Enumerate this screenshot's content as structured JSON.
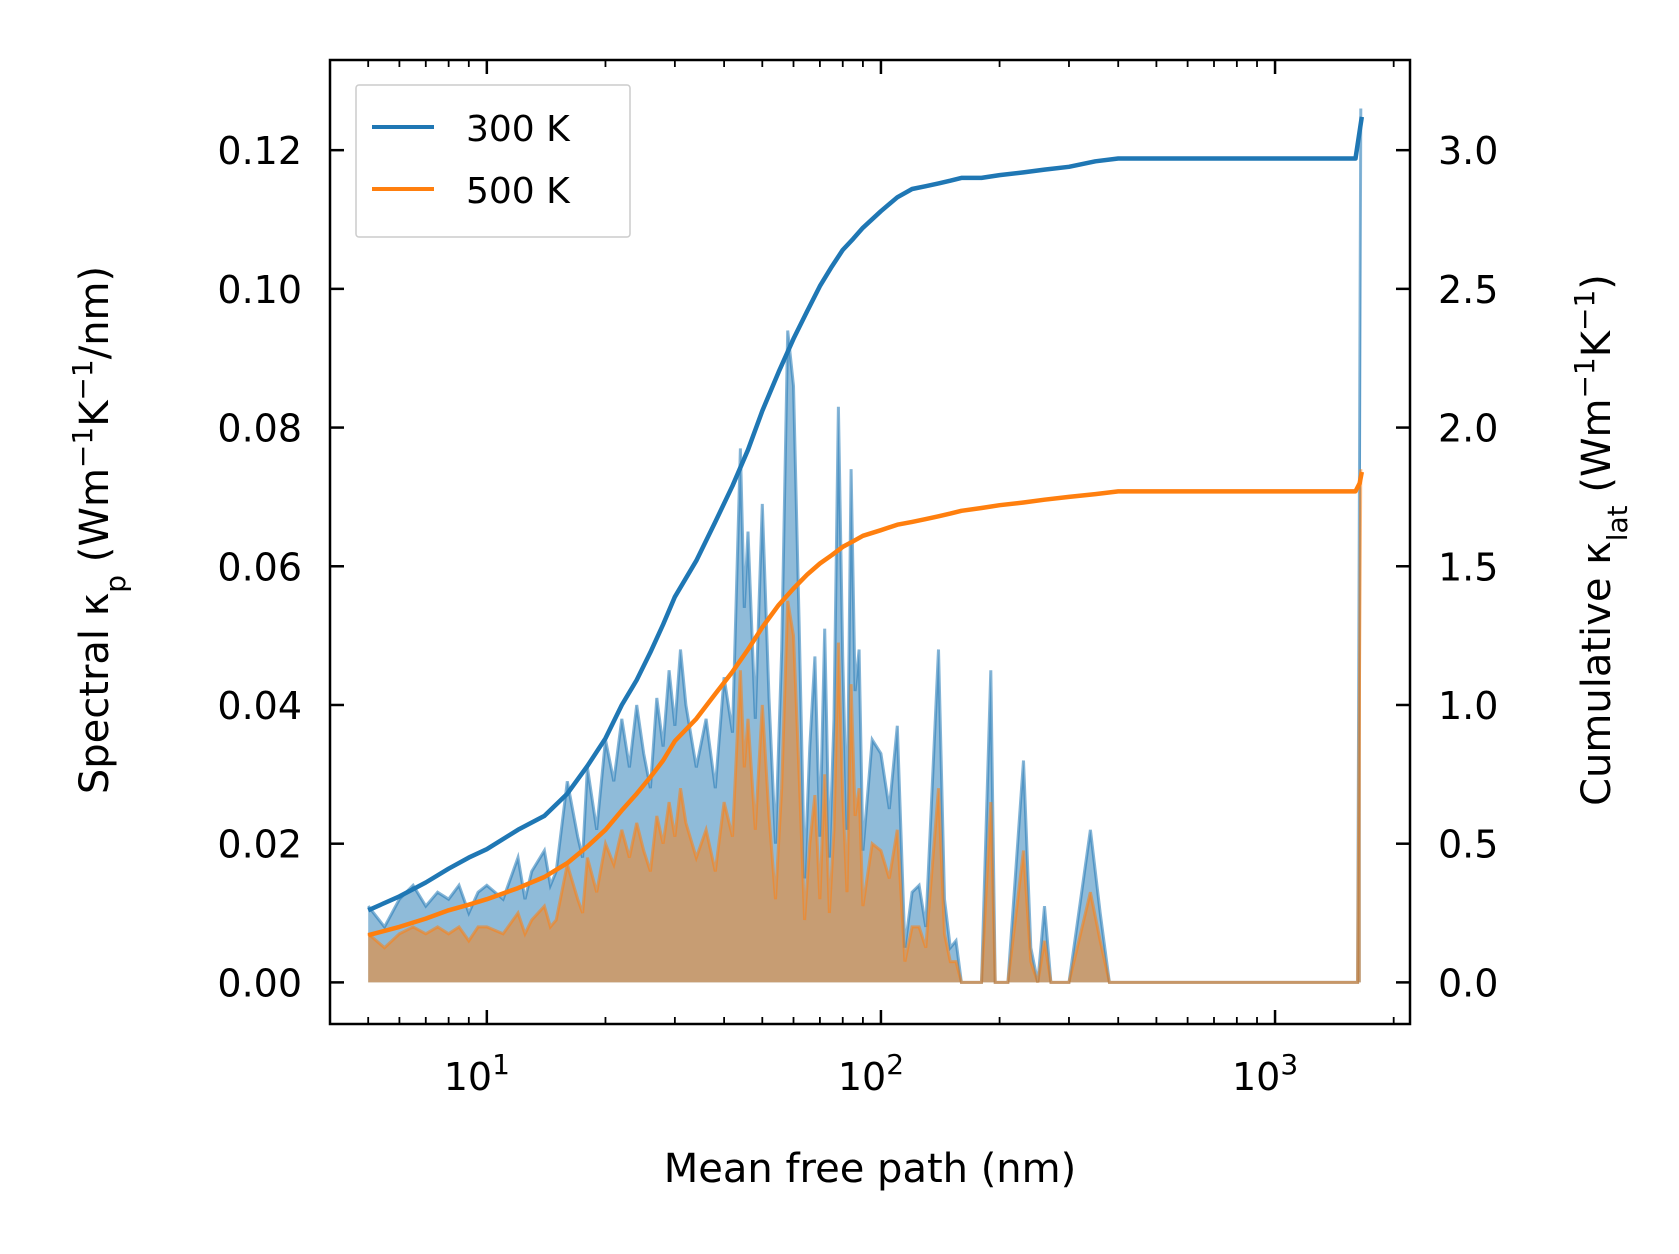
{
  "chart_data": {
    "type": "line",
    "xscale": "log",
    "xlabel": "Mean free path (nm)",
    "ylabel_left": {
      "prefix": "Spectral κ",
      "sub": "p",
      "units": " (Wm",
      "sup1": "−1",
      "mid": "K",
      "sup2": "−1",
      "tail": "/nm)"
    },
    "ylabel_right": {
      "prefix": "Cumulative κ",
      "sub": "lat",
      "units": " (Wm",
      "sup1": "−1",
      "mid": "K",
      "sup2": "−1",
      "tail": ")"
    },
    "xlim": [
      4.0,
      2200
    ],
    "ylim_left": [
      -0.006,
      0.133
    ],
    "ylim_right": [
      -0.15,
      3.325
    ],
    "xticks": [
      {
        "value": 10,
        "base": "10",
        "exp": "1"
      },
      {
        "value": 100,
        "base": "10",
        "exp": "2"
      },
      {
        "value": 1000,
        "base": "10",
        "exp": "3"
      }
    ],
    "yticks_left": [
      {
        "value": 0.0,
        "label": "0.00"
      },
      {
        "value": 0.02,
        "label": "0.02"
      },
      {
        "value": 0.04,
        "label": "0.04"
      },
      {
        "value": 0.06,
        "label": "0.06"
      },
      {
        "value": 0.08,
        "label": "0.08"
      },
      {
        "value": 0.1,
        "label": "0.10"
      },
      {
        "value": 0.12,
        "label": "0.12"
      }
    ],
    "yticks_right": [
      {
        "value": 0.0,
        "label": "0.0"
      },
      {
        "value": 0.5,
        "label": "0.5"
      },
      {
        "value": 1.0,
        "label": "1.0"
      },
      {
        "value": 1.5,
        "label": "1.5"
      },
      {
        "value": 2.0,
        "label": "2.0"
      },
      {
        "value": 2.5,
        "label": "2.5"
      },
      {
        "value": 3.0,
        "label": "3.0"
      }
    ],
    "legend": {
      "position": "top-left",
      "entries": [
        {
          "label": "300 K",
          "color": "#1f77b4"
        },
        {
          "label": "500 K",
          "color": "#ff7f0e"
        }
      ]
    },
    "series": [
      {
        "name": "300 K",
        "color": "#1f77b4",
        "spectral": {
          "x": [
            5.0,
            5.5,
            6.0,
            6.5,
            7.0,
            7.5,
            8.0,
            8.5,
            9.0,
            9.5,
            10.0,
            11.0,
            12.0,
            12.5,
            13.0,
            14.0,
            14.5,
            15.0,
            16.0,
            17.0,
            17.5,
            18.0,
            19.0,
            20.0,
            21.0,
            22.0,
            23.0,
            24.0,
            25.0,
            26.0,
            27.0,
            28.0,
            29.0,
            30.0,
            31.0,
            32.0,
            34.0,
            36.0,
            38.0,
            40.0,
            42.0,
            44.0,
            45.0,
            46.0,
            48.0,
            50.0,
            52.0,
            54.0,
            56.0,
            58.0,
            60.0,
            62.0,
            64.0,
            66.0,
            68.0,
            70.0,
            72.0,
            74.0,
            76.0,
            78.0,
            80.0,
            82.0,
            84.0,
            86.0,
            88.0,
            90.0,
            95.0,
            100.0,
            105.0,
            110.0,
            115.0,
            120.0,
            125.0,
            130.0,
            140.0,
            145.0,
            150.0,
            155.0,
            160.0,
            170.0,
            180.0,
            190.0,
            195.0,
            200.0,
            210.0,
            230.0,
            240.0,
            250.0,
            260.0,
            270.0,
            280.0,
            300.0,
            340.0,
            360.0,
            380.0,
            400.0,
            600.0,
            1000.0,
            1500.0,
            1620.0,
            1650.0
          ],
          "y": [
            0.011,
            0.008,
            0.012,
            0.014,
            0.011,
            0.013,
            0.012,
            0.014,
            0.01,
            0.013,
            0.014,
            0.012,
            0.018,
            0.012,
            0.016,
            0.019,
            0.014,
            0.016,
            0.029,
            0.021,
            0.018,
            0.031,
            0.022,
            0.035,
            0.029,
            0.038,
            0.031,
            0.04,
            0.033,
            0.028,
            0.041,
            0.034,
            0.045,
            0.037,
            0.048,
            0.04,
            0.031,
            0.038,
            0.028,
            0.044,
            0.036,
            0.077,
            0.054,
            0.065,
            0.038,
            0.069,
            0.041,
            0.02,
            0.048,
            0.094,
            0.086,
            0.052,
            0.015,
            0.034,
            0.047,
            0.021,
            0.051,
            0.018,
            0.038,
            0.083,
            0.047,
            0.022,
            0.074,
            0.042,
            0.048,
            0.019,
            0.035,
            0.033,
            0.025,
            0.037,
            0.005,
            0.013,
            0.014,
            0.008,
            0.048,
            0.012,
            0.005,
            0.006,
            0.0,
            0.0,
            0.0,
            0.045,
            0.0,
            0.0,
            0.0,
            0.032,
            0.005,
            0.0,
            0.011,
            0.0,
            0.0,
            0.0,
            0.022,
            0.01,
            0.0,
            0.0,
            0.0,
            0.0,
            0.0,
            0.0,
            0.126
          ]
        },
        "cumulative": {
          "x": [
            5.0,
            6.0,
            7.0,
            8.0,
            9.0,
            10.0,
            12.0,
            14.0,
            16.0,
            18.0,
            20.0,
            22.0,
            24.0,
            26.0,
            28.0,
            30.0,
            34.0,
            38.0,
            42.0,
            46.0,
            50.0,
            55.0,
            60.0,
            65.0,
            70.0,
            75.0,
            80.0,
            85.0,
            90.0,
            100.0,
            110.0,
            120.0,
            130.0,
            140.0,
            150.0,
            160.0,
            180.0,
            200.0,
            230.0,
            260.0,
            300.0,
            350.0,
            400.0,
            600.0,
            1000.0,
            1600.0,
            1640.0,
            1660.0
          ],
          "y": [
            0.26,
            0.31,
            0.36,
            0.41,
            0.45,
            0.48,
            0.55,
            0.6,
            0.68,
            0.78,
            0.88,
            1.0,
            1.09,
            1.19,
            1.29,
            1.39,
            1.52,
            1.66,
            1.79,
            1.92,
            2.06,
            2.2,
            2.32,
            2.42,
            2.51,
            2.58,
            2.64,
            2.68,
            2.72,
            2.78,
            2.83,
            2.86,
            2.87,
            2.88,
            2.89,
            2.9,
            2.9,
            2.91,
            2.92,
            2.93,
            2.94,
            2.96,
            2.97,
            2.97,
            2.97,
            2.97,
            3.07,
            3.12
          ]
        }
      },
      {
        "name": "500 K",
        "color": "#ff7f0e",
        "spectral": {
          "x": [
            5.0,
            5.5,
            6.0,
            6.5,
            7.0,
            7.5,
            8.0,
            8.5,
            9.0,
            9.5,
            10.0,
            11.0,
            12.0,
            12.5,
            13.0,
            14.0,
            14.5,
            15.0,
            16.0,
            17.0,
            17.5,
            18.0,
            19.0,
            20.0,
            21.0,
            22.0,
            23.0,
            24.0,
            25.0,
            26.0,
            27.0,
            28.0,
            29.0,
            30.0,
            31.0,
            32.0,
            34.0,
            36.0,
            38.0,
            40.0,
            42.0,
            44.0,
            45.0,
            46.0,
            48.0,
            50.0,
            52.0,
            54.0,
            56.0,
            58.0,
            60.0,
            62.0,
            64.0,
            66.0,
            68.0,
            70.0,
            72.0,
            74.0,
            76.0,
            78.0,
            80.0,
            82.0,
            84.0,
            86.0,
            88.0,
            90.0,
            95.0,
            100.0,
            105.0,
            110.0,
            115.0,
            120.0,
            125.0,
            130.0,
            140.0,
            145.0,
            150.0,
            155.0,
            160.0,
            170.0,
            180.0,
            190.0,
            195.0,
            200.0,
            210.0,
            230.0,
            240.0,
            250.0,
            260.0,
            270.0,
            280.0,
            300.0,
            340.0,
            360.0,
            380.0,
            400.0,
            600.0,
            1000.0,
            1500.0,
            1620.0,
            1650.0
          ],
          "y": [
            0.007,
            0.005,
            0.007,
            0.008,
            0.007,
            0.008,
            0.007,
            0.008,
            0.006,
            0.008,
            0.008,
            0.007,
            0.01,
            0.007,
            0.009,
            0.011,
            0.008,
            0.009,
            0.017,
            0.012,
            0.01,
            0.018,
            0.013,
            0.02,
            0.017,
            0.022,
            0.018,
            0.023,
            0.019,
            0.016,
            0.024,
            0.02,
            0.026,
            0.021,
            0.028,
            0.023,
            0.018,
            0.022,
            0.016,
            0.026,
            0.021,
            0.045,
            0.031,
            0.038,
            0.022,
            0.04,
            0.024,
            0.012,
            0.028,
            0.055,
            0.05,
            0.03,
            0.009,
            0.02,
            0.027,
            0.012,
            0.03,
            0.01,
            0.022,
            0.049,
            0.027,
            0.013,
            0.043,
            0.024,
            0.028,
            0.011,
            0.02,
            0.019,
            0.015,
            0.022,
            0.003,
            0.008,
            0.008,
            0.005,
            0.028,
            0.007,
            0.003,
            0.003,
            0.0,
            0.0,
            0.0,
            0.026,
            0.0,
            0.0,
            0.0,
            0.019,
            0.003,
            0.0,
            0.006,
            0.0,
            0.0,
            0.0,
            0.013,
            0.006,
            0.0,
            0.0,
            0.0,
            0.0,
            0.0,
            0.0,
            0.074
          ]
        },
        "cumulative": {
          "x": [
            5.0,
            6.0,
            7.0,
            8.0,
            9.0,
            10.0,
            12.0,
            14.0,
            16.0,
            18.0,
            20.0,
            22.0,
            24.0,
            26.0,
            28.0,
            30.0,
            34.0,
            38.0,
            42.0,
            46.0,
            50.0,
            55.0,
            60.0,
            65.0,
            70.0,
            75.0,
            80.0,
            85.0,
            90.0,
            100.0,
            110.0,
            120.0,
            130.0,
            140.0,
            150.0,
            160.0,
            180.0,
            200.0,
            230.0,
            260.0,
            300.0,
            350.0,
            400.0,
            600.0,
            1000.0,
            1600.0,
            1640.0,
            1660.0
          ],
          "y": [
            0.17,
            0.2,
            0.23,
            0.26,
            0.28,
            0.3,
            0.34,
            0.38,
            0.43,
            0.49,
            0.55,
            0.62,
            0.68,
            0.74,
            0.8,
            0.87,
            0.95,
            1.04,
            1.12,
            1.2,
            1.28,
            1.36,
            1.42,
            1.47,
            1.51,
            1.54,
            1.57,
            1.59,
            1.61,
            1.63,
            1.65,
            1.66,
            1.67,
            1.68,
            1.69,
            1.7,
            1.71,
            1.72,
            1.73,
            1.74,
            1.75,
            1.76,
            1.77,
            1.77,
            1.77,
            1.77,
            1.8,
            1.84
          ]
        }
      }
    ]
  }
}
